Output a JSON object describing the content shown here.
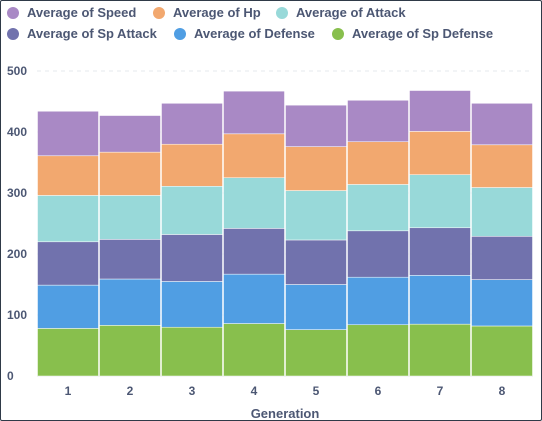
{
  "chart_data": {
    "type": "bar",
    "stacked": true,
    "xlabel": "Generation",
    "ylabel": "",
    "ylim": [
      0,
      500
    ],
    "yticks": [
      0,
      100,
      200,
      300,
      400,
      500
    ],
    "grid": "horizontal dashed",
    "legend_position": "top",
    "categories": [
      "1",
      "2",
      "3",
      "4",
      "5",
      "6",
      "7",
      "8"
    ],
    "series": [
      {
        "name": "Average of Sp Defense",
        "color": "#88bf4d",
        "values": [
          78,
          83,
          80,
          86,
          76,
          84,
          85,
          82
        ]
      },
      {
        "name": "Average of Defense",
        "color": "#509ee3",
        "values": [
          71,
          76,
          75,
          81,
          74,
          78,
          80,
          76
        ]
      },
      {
        "name": "Average of Sp Attack",
        "color": "#7172ad",
        "values": [
          71,
          65,
          77,
          75,
          73,
          76,
          78,
          71
        ]
      },
      {
        "name": "Average of Attack",
        "color": "#98d9d9",
        "values": [
          76,
          72,
          79,
          83,
          81,
          76,
          87,
          80
        ]
      },
      {
        "name": "Average of Hp",
        "color": "#f2a86f",
        "values": [
          65,
          71,
          69,
          72,
          72,
          70,
          71,
          70
        ]
      },
      {
        "name": "Average of Speed",
        "color": "#a989c5",
        "values": [
          73,
          60,
          67,
          70,
          68,
          68,
          67,
          68
        ]
      }
    ]
  },
  "legend": {
    "row1": [
      {
        "label": "Average of Speed",
        "color": "#a989c5"
      },
      {
        "label": "Average of Hp",
        "color": "#f2a86f"
      },
      {
        "label": "Average of Attack",
        "color": "#98d9d9"
      }
    ],
    "row2": [
      {
        "label": "Average of Sp Attack",
        "color": "#7172ad"
      },
      {
        "label": "Average of Defense",
        "color": "#509ee3"
      },
      {
        "label": "Average of Sp Defense",
        "color": "#88bf4d"
      }
    ]
  }
}
